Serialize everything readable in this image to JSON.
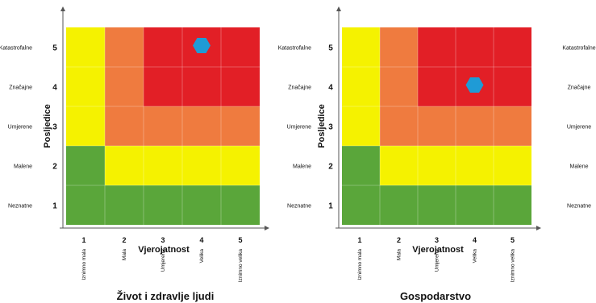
{
  "colors": {
    "green": "#5aa63a",
    "yellow": "#f5f200",
    "orange": "#ef7b3f",
    "red": "#e21f26",
    "marker": "#1f9bd6",
    "axis": "#555555",
    "text": "#111111"
  },
  "chart_data": [
    {
      "type": "heatmap",
      "title": "Život i zdravlje ljudi",
      "xlabel": "Vjerojatnost",
      "ylabel": "Posljedice",
      "x_ticks": [
        "1",
        "2",
        "3",
        "4",
        "5"
      ],
      "x_categories": [
        "Iznimno mala",
        "Mala",
        "Umjerena",
        "Velika",
        "Iznimno velika"
      ],
      "y_ticks": [
        "1",
        "2",
        "3",
        "4",
        "5"
      ],
      "y_categories": [
        "Neznatne",
        "Malene",
        "Umjerene",
        "Značajne",
        "Katastrofalne"
      ],
      "y_category_side": "left",
      "matrix": [
        [
          "green",
          "green",
          "green",
          "green",
          "green"
        ],
        [
          "green",
          "yellow",
          "yellow",
          "yellow",
          "yellow"
        ],
        [
          "yellow",
          "orange",
          "orange",
          "orange",
          "orange"
        ],
        [
          "yellow",
          "orange",
          "red",
          "red",
          "red"
        ],
        [
          "yellow",
          "orange",
          "red",
          "red",
          "red"
        ]
      ],
      "marker": {
        "x": 4,
        "y": 5,
        "shape": "hexagon"
      }
    },
    {
      "type": "heatmap",
      "title": "Gospodarstvo",
      "xlabel": "Vjerojatnost",
      "ylabel": "Posljedice",
      "x_ticks": [
        "1",
        "2",
        "3",
        "4",
        "5"
      ],
      "x_categories": [
        "Iznimno mala",
        "Mala",
        "Umjerena",
        "Velika",
        "Iznimno velika"
      ],
      "y_ticks": [
        "1",
        "2",
        "3",
        "4",
        "5"
      ],
      "y_categories": [
        "Neznatne",
        "Malene",
        "Umjerene",
        "Značajne",
        "Katastrofalne"
      ],
      "y_categories_right": [
        "Neznatne",
        "Malene",
        "Umjerene",
        "Značajne",
        "Katastrofalne"
      ],
      "y_category_side": "left-and-right",
      "matrix": [
        [
          "green",
          "green",
          "green",
          "green",
          "green"
        ],
        [
          "green",
          "yellow",
          "yellow",
          "yellow",
          "yellow"
        ],
        [
          "yellow",
          "orange",
          "orange",
          "orange",
          "orange"
        ],
        [
          "yellow",
          "orange",
          "red",
          "red",
          "red"
        ],
        [
          "yellow",
          "orange",
          "red",
          "red",
          "red"
        ]
      ],
      "marker": {
        "x": 4,
        "y": 4,
        "shape": "hexagon"
      }
    }
  ]
}
